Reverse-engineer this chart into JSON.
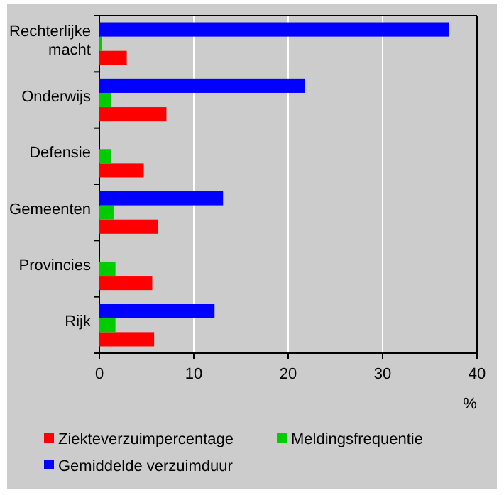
{
  "chart_data": {
    "type": "bar",
    "orientation": "horizontal",
    "xlabel": "%",
    "categories": [
      "Rechterlijke macht",
      "Onderwijs",
      "Defensie",
      "Gemeenten",
      "Provincies",
      "Rijk"
    ],
    "series": [
      {
        "name": "Ziekteverzuimpercentage",
        "color": "#ff0000",
        "values": [
          2.9,
          7.1,
          4.7,
          6.2,
          5.6,
          5.8
        ]
      },
      {
        "name": "Meldingsfrequentie",
        "color": "#00cc00",
        "values": [
          0.3,
          1.2,
          1.2,
          1.5,
          1.7,
          1.7
        ]
      },
      {
        "name": "Gemiddelde verzuimduur",
        "color": "#0000ff",
        "values": [
          37,
          21.8,
          null,
          13.1,
          null,
          12.2
        ]
      }
    ],
    "xlim": [
      0,
      40
    ],
    "xticks": [
      0,
      10,
      20,
      30,
      40
    ],
    "grid": "x",
    "legend": "bottom"
  }
}
